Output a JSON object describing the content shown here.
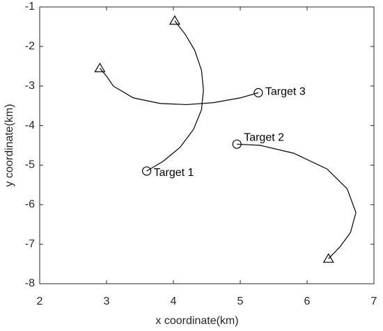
{
  "chart_data": {
    "type": "line",
    "xlabel": "x coordinate(km)",
    "ylabel": "y coordinate(km)",
    "xlim": [
      2,
      7
    ],
    "ylim": [
      -8,
      -1
    ],
    "xticks": [
      2,
      3,
      4,
      5,
      6,
      7
    ],
    "yticks": [
      -8,
      -7,
      -6,
      -5,
      -4,
      -3,
      -2,
      -1
    ],
    "color": "#000000",
    "series": [
      {
        "name": "Target 1",
        "x": [
          3.6,
          3.85,
          4.1,
          4.3,
          4.42,
          4.45,
          4.42,
          4.32,
          4.18,
          4.02
        ],
        "y": [
          -5.15,
          -4.9,
          -4.55,
          -4.1,
          -3.6,
          -3.1,
          -2.6,
          -2.1,
          -1.7,
          -1.35
        ]
      },
      {
        "name": "Target 2",
        "x": [
          4.95,
          5.3,
          5.8,
          6.3,
          6.6,
          6.73,
          6.65,
          6.5,
          6.32
        ],
        "y": [
          -4.47,
          -4.5,
          -4.7,
          -5.1,
          -5.6,
          -6.2,
          -6.7,
          -7.05,
          -7.37
        ]
      },
      {
        "name": "Target 3",
        "x": [
          5.27,
          5.0,
          4.6,
          4.2,
          3.8,
          3.4,
          3.1,
          3.0,
          2.9
        ],
        "y": [
          -3.17,
          -3.3,
          -3.42,
          -3.47,
          -3.44,
          -3.3,
          -3.0,
          -2.75,
          -2.55
        ]
      }
    ]
  }
}
